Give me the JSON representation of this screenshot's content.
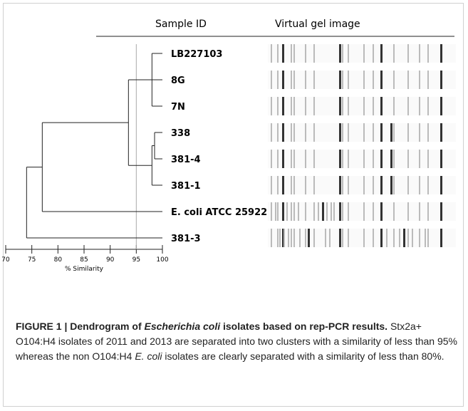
{
  "header": {
    "sample_id": "Sample ID",
    "gel": "Virtual gel image"
  },
  "samples": [
    "LB227103",
    "8G",
    "7N",
    "338",
    "381-4",
    "381-1",
    "E. coli ATCC 25922",
    "381-3"
  ],
  "dendrogram": {
    "xlim": [
      70,
      100
    ],
    "xticks": [
      70,
      75,
      80,
      85,
      90,
      95,
      100
    ],
    "axis_label": "% Similarity",
    "reference_line": 95,
    "merges": [
      {
        "children": [
          0,
          1,
          2
        ],
        "similarity": 98
      },
      {
        "children": [
          3,
          4
        ],
        "similarity": 98.5
      },
      {
        "children": [
          9,
          5
        ],
        "similarity": 98
      },
      {
        "children": [
          8,
          10
        ],
        "similarity": 93.5
      },
      {
        "children": [
          11,
          6
        ],
        "similarity": 77
      },
      {
        "children": [
          12,
          7
        ],
        "similarity": 74
      }
    ]
  },
  "caption": {
    "runs": [
      {
        "text": "FIGURE 1 | Dendrogram of ",
        "style": "bold"
      },
      {
        "text": "Escherichia coli",
        "style": "bold-italic"
      },
      {
        "text": " isolates based on rep-PCR results.",
        "style": "bold"
      },
      {
        "text": " Stx2a+ O104:H4 isolates of 2011 and 2013 are separated into two clusters with a similarity of less than 95% whereas the non O104:H4 ",
        "style": "normal"
      },
      {
        "text": "E. coli",
        "style": "italic"
      },
      {
        "text": " isolates are clearly separated with a similarity of less than 80%.",
        "style": "normal"
      }
    ]
  }
}
